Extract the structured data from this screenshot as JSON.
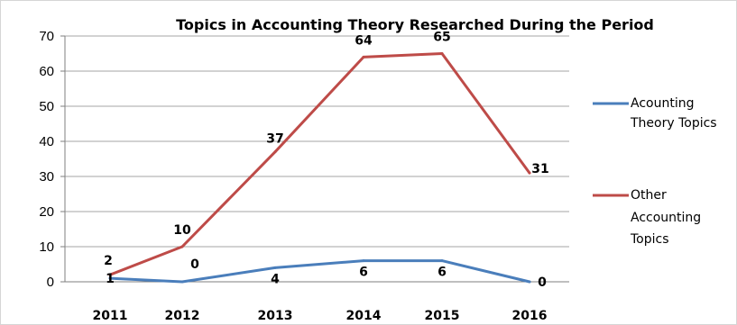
{
  "chart_data": {
    "type": "line",
    "title": "Topics in Accounting Theory Researched During the Period",
    "xlabel": "",
    "ylabel": "",
    "categories": [
      "2011",
      "2012",
      "2013",
      "2014",
      "2015",
      "2016"
    ],
    "ylim": [
      0,
      70
    ],
    "yticks": [
      0,
      10,
      20,
      30,
      40,
      50,
      60,
      70
    ],
    "grid": true,
    "legend_position": "right",
    "series": [
      {
        "name": "Acounting Theory Topics",
        "color": "#4a7ebb",
        "values": [
          1,
          0,
          4,
          6,
          6,
          0
        ],
        "labels": [
          "1",
          "0",
          "4",
          "6",
          "6",
          "0"
        ]
      },
      {
        "name": "Other Accounting Topics",
        "color": "#be4b48",
        "values": [
          2,
          10,
          37,
          64,
          65,
          31
        ],
        "labels": [
          "2",
          "10",
          "37",
          "64",
          "65",
          "31"
        ]
      }
    ]
  }
}
